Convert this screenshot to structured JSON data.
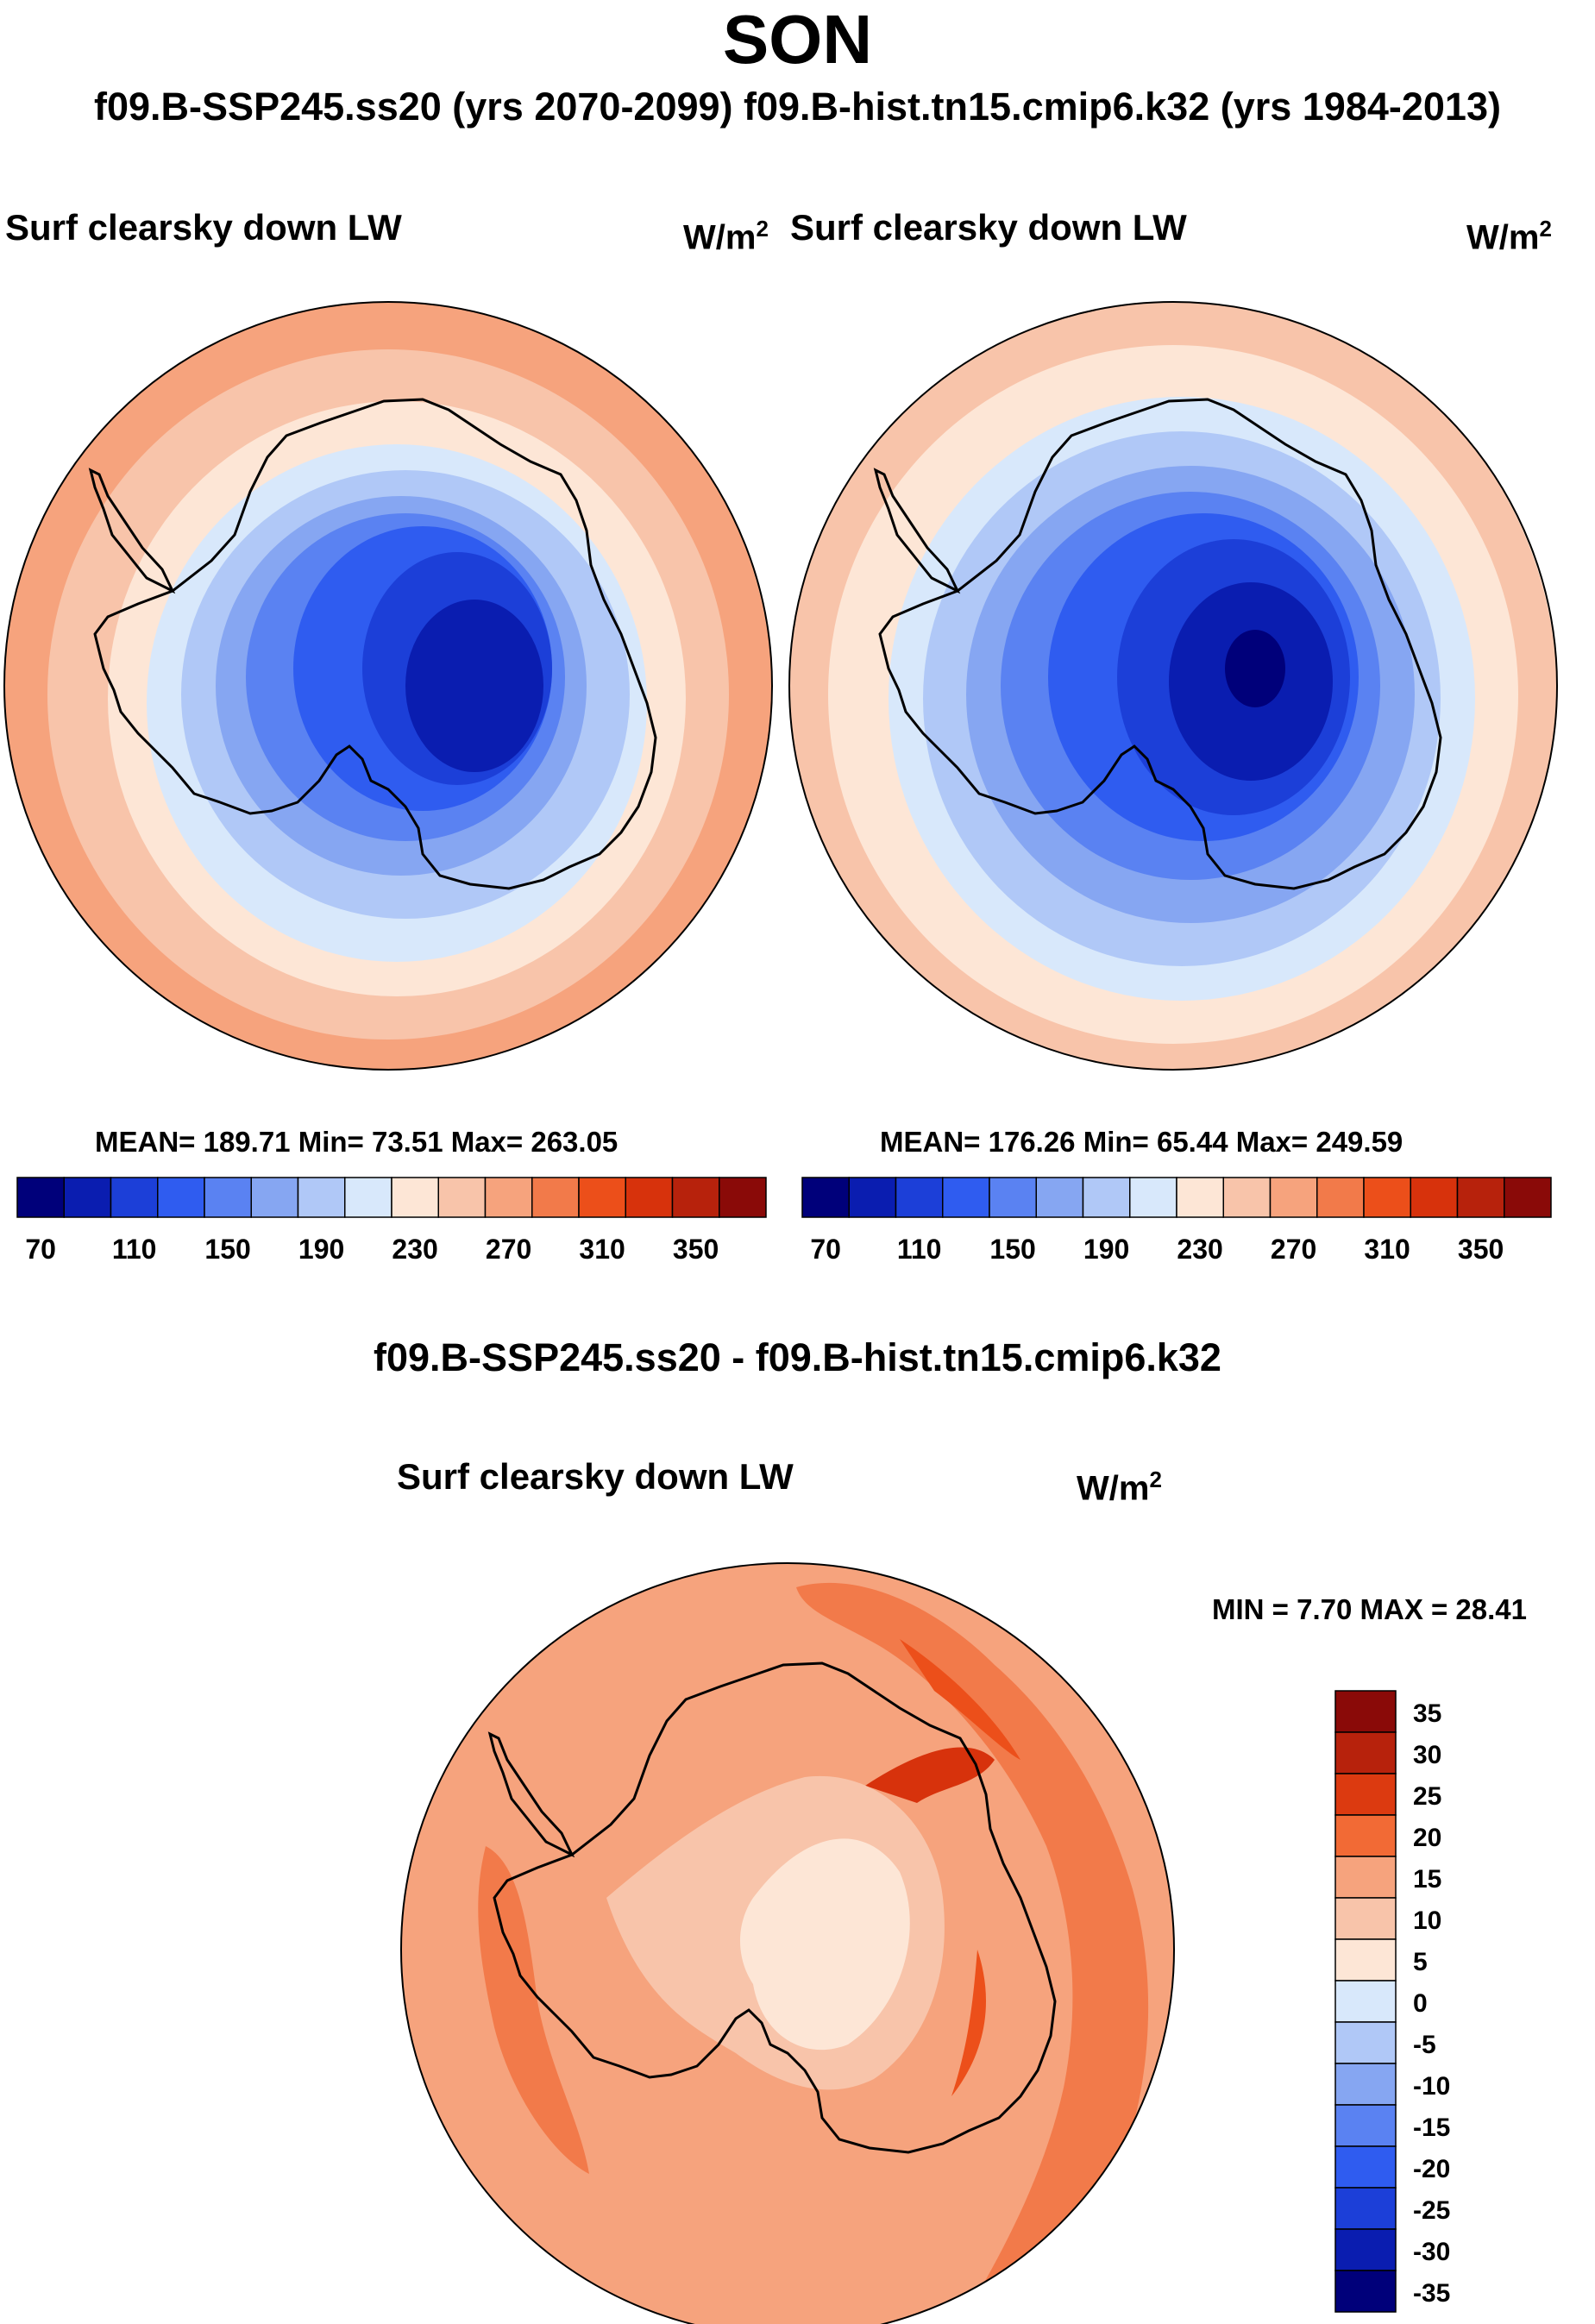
{
  "title": "SON",
  "subtitle": "f09.B-SSP245.ss20 (yrs 2070-2099)  f09.B-hist.tn15.cmip6.k32 (yrs 1984-2013)",
  "panels": [
    {
      "variable": "Surf clearsky down LW",
      "units_base": "W/m",
      "units_exp": "2",
      "stats": "MEAN= 189.71  Min=  73.51  Max= 263.05"
    },
    {
      "variable": "Surf clearsky down LW",
      "units_base": "W/m",
      "units_exp": "2",
      "stats": "MEAN= 176.26  Min=  65.44  Max= 249.59"
    },
    {
      "difference_title": "f09.B-SSP245.ss20 - f09.B-hist.tn15.cmip6.k32",
      "variable": "Surf clearsky down LW",
      "units_base": "W/m",
      "units_exp": "2",
      "stats": "MIN =   7.70 MAX =  28.41"
    }
  ],
  "colorbars": {
    "absolute": {
      "labels": [
        "70",
        "110",
        "150",
        "190",
        "230",
        "270",
        "310",
        "350"
      ],
      "colors": [
        "#00007a",
        "#0a1db0",
        "#1c3fd8",
        "#2f5cf0",
        "#5a82f2",
        "#86a6f2",
        "#b0c8f7",
        "#d8e8fb",
        "#fde6d6",
        "#f8c4aa",
        "#f6a37d",
        "#f27a4a",
        "#ec4f1a",
        "#d7320c",
        "#b7220c",
        "#8a0a08"
      ]
    },
    "difference": {
      "labels": [
        "35",
        "30",
        "25",
        "20",
        "15",
        "10",
        "5",
        "0",
        "-5",
        "-10",
        "-15",
        "-20",
        "-25",
        "-30",
        "-35"
      ],
      "colors": [
        "#8a0a08",
        "#b7220c",
        "#dc3a10",
        "#f26a35",
        "#f6a37d",
        "#f8c4aa",
        "#fde6d6",
        "#d8e8fb",
        "#b0c8f7",
        "#86a6f2",
        "#5a82f2",
        "#2f5cf0",
        "#1c3fd8",
        "#0a1db0",
        "#00007a"
      ]
    }
  }
}
